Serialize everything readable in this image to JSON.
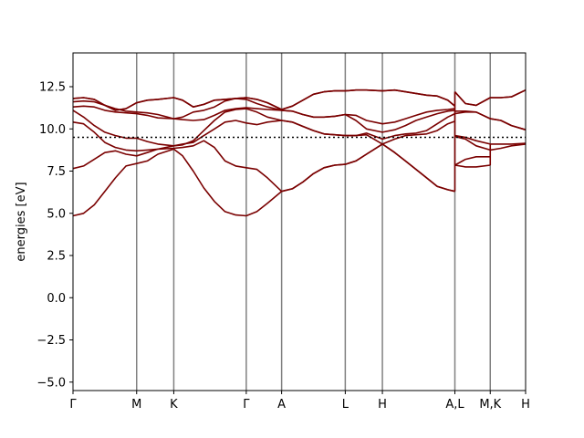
{
  "chart_data": {
    "type": "line",
    "title": "",
    "xlabel": "",
    "ylabel": "energies [eV]",
    "xlim": [
      0,
      12.8
    ],
    "ylim": [
      -5.5,
      14.5
    ],
    "yticks": [
      -5.0,
      -2.5,
      0.0,
      2.5,
      5.0,
      7.5,
      10.0,
      12.5
    ],
    "ytick_labels": [
      "−5.0",
      "−2.5",
      "0.0",
      "2.5",
      "5.0",
      "7.5",
      "10.0",
      "12.5"
    ],
    "kpoints": [
      {
        "label": "Γ",
        "x": 0.0
      },
      {
        "label": "M",
        "x": 1.8
      },
      {
        "label": "K",
        "x": 2.85
      },
      {
        "label": "Γ",
        "x": 4.9
      },
      {
        "label": "A",
        "x": 5.9
      },
      {
        "label": "L",
        "x": 7.7
      },
      {
        "label": "H",
        "x": 8.75
      },
      {
        "label": "A,L",
        "x": 10.8
      },
      {
        "label": "M,K",
        "x": 11.8
      },
      {
        "label": "H",
        "x": 12.8
      }
    ],
    "fermi_level": 9.5,
    "band_color": "#7a0000",
    "kline_color": "#808080",
    "fermi_color": "#000000",
    "series": [
      {
        "x": [
          0,
          0.3,
          0.6,
          0.9,
          1.2,
          1.5,
          1.8,
          2.1,
          2.4,
          2.85,
          3.1,
          3.4,
          3.7,
          4.0,
          4.3,
          4.6,
          4.9,
          5.2,
          5.5,
          5.9,
          6.2,
          6.5,
          6.8,
          7.1,
          7.4,
          7.7,
          8.0,
          8.3,
          8.75,
          9.1,
          9.4,
          9.7,
          10.0,
          10.3,
          10.6,
          10.8
        ],
        "values": [
          4.85,
          5.0,
          5.5,
          6.3,
          7.1,
          7.8,
          7.95,
          8.1,
          8.5,
          8.8,
          8.4,
          7.5,
          6.5,
          5.7,
          5.1,
          4.9,
          4.85,
          5.1,
          5.6,
          6.3,
          6.45,
          6.85,
          7.35,
          7.7,
          7.85,
          7.9,
          8.1,
          8.5,
          9.1,
          8.6,
          8.1,
          7.6,
          7.1,
          6.6,
          6.4,
          6.3
        ]
      },
      {
        "x": [
          0,
          0.3,
          0.6,
          0.9,
          1.2,
          1.5,
          1.8,
          2.1,
          2.4,
          2.85,
          3.1,
          3.4,
          3.7,
          4.0,
          4.3,
          4.6,
          4.9,
          5.2,
          5.5,
          5.9,
          6.2,
          6.5,
          6.8,
          7.1,
          7.4,
          7.7,
          8.0,
          8.3,
          8.75,
          9.1,
          9.4,
          9.7,
          10.0,
          10.3,
          10.6,
          10.8
        ],
        "values": [
          7.65,
          7.8,
          8.2,
          8.6,
          8.7,
          8.5,
          8.4,
          8.6,
          8.8,
          8.85,
          8.9,
          9.0,
          9.3,
          8.9,
          8.1,
          7.8,
          7.7,
          7.6,
          7.1,
          6.3,
          6.45,
          6.85,
          7.35,
          7.7,
          7.85,
          7.9,
          8.1,
          8.5,
          9.1,
          8.6,
          8.1,
          7.6,
          7.1,
          6.6,
          6.4,
          6.3
        ]
      },
      {
        "x": [
          0,
          0.3,
          0.6,
          0.9,
          1.2,
          1.5,
          1.8,
          2.1,
          2.4,
          2.85,
          3.1,
          3.4,
          3.7,
          4.0,
          4.3,
          4.6,
          4.9,
          5.2,
          5.5,
          5.9,
          6.2,
          6.5,
          6.8,
          7.1,
          7.4,
          7.7,
          8.0,
          8.3,
          8.75,
          9.1,
          9.4,
          9.7,
          10.0,
          10.3,
          10.6,
          10.8
        ],
        "values": [
          10.4,
          10.3,
          9.8,
          9.2,
          8.9,
          8.75,
          8.7,
          8.75,
          8.8,
          9.0,
          9.1,
          9.2,
          9.6,
          10.0,
          10.4,
          10.5,
          10.35,
          10.25,
          10.4,
          10.5,
          10.4,
          10.15,
          9.9,
          9.7,
          9.65,
          9.6,
          9.6,
          9.65,
          9.1,
          9.4,
          9.6,
          9.65,
          9.7,
          9.9,
          10.3,
          10.45
        ]
      },
      {
        "x": [
          0,
          0.3,
          0.6,
          0.9,
          1.2,
          1.5,
          1.8,
          2.1,
          2.4,
          2.85,
          3.1,
          3.4,
          3.7,
          4.0,
          4.3,
          4.6,
          4.9,
          5.2,
          5.5,
          5.9,
          6.2,
          6.5,
          6.8,
          7.1,
          7.4,
          7.7,
          8.0,
          8.3,
          8.75,
          9.1,
          9.4,
          9.7,
          10.0,
          10.3,
          10.6,
          10.8
        ],
        "values": [
          11.1,
          10.7,
          10.2,
          9.8,
          9.6,
          9.45,
          9.45,
          9.25,
          9.1,
          9.0,
          9.05,
          9.3,
          9.9,
          10.5,
          11.0,
          11.15,
          11.2,
          11.0,
          10.7,
          10.5,
          10.4,
          10.15,
          9.9,
          9.7,
          9.65,
          9.6,
          9.6,
          9.75,
          9.4,
          9.6,
          9.7,
          9.75,
          9.9,
          10.3,
          10.7,
          10.9
        ]
      },
      {
        "x": [
          0,
          0.3,
          0.6,
          0.9,
          1.2,
          1.5,
          1.8,
          2.1,
          2.4,
          2.85,
          3.1,
          3.4,
          3.7,
          4.0,
          4.3,
          4.6,
          4.9,
          5.2,
          5.5,
          5.9,
          6.2,
          6.5,
          6.8,
          7.1,
          7.4,
          7.7,
          8.0,
          8.3,
          8.75,
          9.1,
          9.4,
          9.7,
          10.0,
          10.3,
          10.6,
          10.8
        ],
        "values": [
          11.3,
          11.35,
          11.3,
          11.1,
          11.0,
          10.95,
          10.9,
          10.8,
          10.65,
          10.6,
          10.55,
          10.5,
          10.55,
          10.8,
          11.1,
          11.2,
          11.25,
          11.2,
          11.15,
          11.1,
          11.05,
          10.85,
          10.7,
          10.7,
          10.75,
          10.85,
          10.5,
          10.0,
          9.8,
          9.95,
          10.2,
          10.5,
          10.7,
          10.9,
          11.05,
          11.1
        ]
      },
      {
        "x": [
          0,
          0.3,
          0.6,
          0.9,
          1.2,
          1.5,
          1.8,
          2.1,
          2.4,
          2.85,
          3.1,
          3.4,
          3.7,
          4.0,
          4.3,
          4.6,
          4.9,
          5.2,
          5.5,
          5.9,
          6.2,
          6.5,
          6.8,
          7.1,
          7.4,
          7.7,
          8.0,
          8.3,
          8.75,
          9.1,
          9.4,
          9.7,
          10.0,
          10.3,
          10.6,
          10.8
        ],
        "values": [
          11.6,
          11.65,
          11.6,
          11.4,
          11.2,
          11.05,
          11.0,
          10.95,
          10.85,
          10.6,
          10.7,
          11.0,
          11.1,
          11.3,
          11.65,
          11.8,
          11.75,
          11.5,
          11.3,
          11.1,
          11.05,
          10.85,
          10.7,
          10.7,
          10.75,
          10.85,
          10.8,
          10.5,
          10.3,
          10.4,
          10.6,
          10.8,
          11.0,
          11.1,
          11.15,
          11.2
        ]
      },
      {
        "x": [
          0,
          0.3,
          0.6,
          0.9,
          1.2,
          1.5,
          1.8,
          2.1,
          2.4,
          2.85,
          3.1,
          3.4,
          3.7,
          4.0,
          4.3,
          4.6,
          4.9,
          5.2,
          5.5,
          5.9,
          6.2,
          6.5,
          6.8,
          7.1,
          7.4,
          7.7,
          8.0,
          8.3,
          8.75,
          9.1,
          9.4,
          9.7,
          10.0,
          10.3,
          10.6,
          10.8
        ],
        "values": [
          11.8,
          11.85,
          11.75,
          11.4,
          11.1,
          11.2,
          11.55,
          11.7,
          11.75,
          11.85,
          11.7,
          11.3,
          11.45,
          11.7,
          11.75,
          11.8,
          11.85,
          11.75,
          11.55,
          11.15,
          11.35,
          11.7,
          12.05,
          12.2,
          12.25,
          12.25,
          12.3,
          12.3,
          12.25,
          12.3,
          12.2,
          12.1,
          12.0,
          11.95,
          11.7,
          11.35
        ]
      },
      {
        "x": [
          0,
          0.3,
          0.6,
          0.9,
          1.2,
          1.5,
          1.8,
          2.1,
          2.4,
          2.85,
          3.1,
          3.4,
          3.7,
          4.0,
          4.3,
          4.6,
          4.9,
          5.2,
          5.5,
          5.9,
          6.2,
          6.5,
          6.8,
          7.1,
          7.4,
          7.7,
          8.0,
          8.3,
          8.75,
          9.1,
          9.4,
          9.7,
          10.0,
          10.3,
          10.6,
          10.8
        ],
        "values": [
          11.8,
          11.85,
          11.75,
          11.4,
          11.1,
          11.2,
          11.55,
          11.7,
          11.75,
          11.85,
          11.7,
          11.3,
          11.45,
          11.7,
          11.75,
          11.8,
          11.85,
          11.75,
          11.55,
          11.15,
          11.35,
          11.7,
          12.05,
          12.2,
          12.25,
          12.25,
          12.3,
          12.3,
          12.25,
          12.3,
          12.2,
          12.1,
          12.0,
          11.95,
          11.7,
          11.35
        ]
      },
      {
        "x": [
          10.8,
          11.1,
          11.4,
          11.8
        ],
        "values": [
          7.85,
          7.75,
          7.75,
          7.85
        ]
      },
      {
        "x": [
          10.8,
          11.1,
          11.4,
          11.8
        ],
        "values": [
          7.85,
          8.2,
          8.35,
          8.35
        ]
      },
      {
        "x": [
          10.8,
          11.1,
          11.4,
          11.8,
          12.1,
          12.4,
          12.8
        ],
        "values": [
          9.55,
          9.4,
          9.0,
          8.75,
          8.85,
          9.0,
          9.1
        ]
      },
      {
        "x": [
          10.8,
          11.1,
          11.4,
          11.8,
          12.1,
          12.4,
          12.8
        ],
        "values": [
          9.6,
          9.5,
          9.3,
          9.1,
          9.1,
          9.1,
          9.15
        ]
      },
      {
        "x": [
          10.8,
          11.1,
          11.4,
          11.8,
          12.1,
          12.4,
          12.8
        ],
        "values": [
          10.9,
          11.0,
          11.0,
          10.6,
          10.5,
          10.2,
          9.95
        ]
      },
      {
        "x": [
          10.8,
          11.1,
          11.4,
          11.8,
          12.1,
          12.4,
          12.8
        ],
        "values": [
          11.05,
          11.05,
          11.0,
          10.6,
          10.5,
          10.2,
          9.95
        ]
      },
      {
        "x": [
          10.8,
          11.1,
          11.4,
          11.8,
          12.1,
          12.4,
          12.8
        ],
        "values": [
          12.2,
          11.5,
          11.4,
          11.85,
          11.85,
          11.9,
          12.3
        ]
      },
      {
        "x": [
          10.8,
          11.1,
          11.4,
          11.8,
          12.1,
          12.4,
          12.8
        ],
        "values": [
          12.2,
          11.5,
          11.4,
          11.85,
          11.85,
          11.9,
          12.3
        ]
      }
    ]
  }
}
